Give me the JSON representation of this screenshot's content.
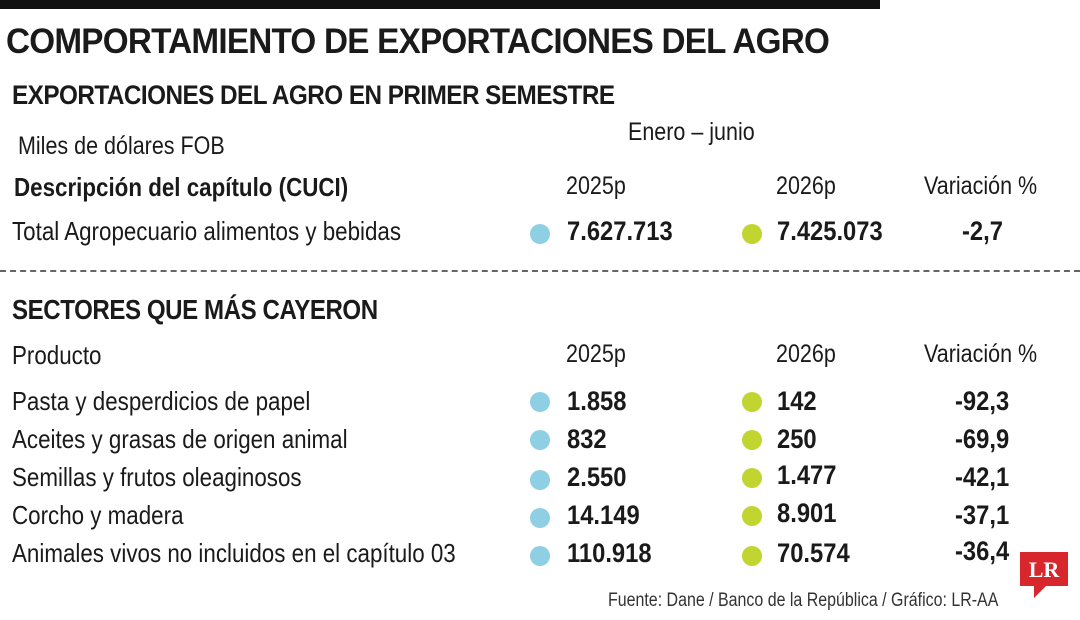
{
  "title": "COMPORTAMIENTO DE EXPORTACIONES DEL AGRO",
  "subtitle": "EXPORTACIONES DEL AGRO EN PRIMER SEMESTRE",
  "units": "Miles de dólares FOB",
  "period": "Enero – junio",
  "colors": {
    "dot_2025": "#8fcfe3",
    "dot_2026": "#c1d42f",
    "logo_red": "#d7262c"
  },
  "total_table": {
    "headers": {
      "description": "Descripción del capítulo (CUCI)",
      "y2025": "2025p",
      "y2026": "2026p",
      "variation": "Variación %"
    },
    "rows": [
      {
        "label": "Total Agropecuario alimentos y bebidas",
        "y2025": "7.627.713",
        "y2026": "7.425.073",
        "variation": "-2,7"
      }
    ]
  },
  "sectors_table": {
    "title": "SECTORES QUE MÁS CAYERON",
    "headers": {
      "product": "Producto",
      "y2025": "2025p",
      "y2026": "2026p",
      "variation": "Variación %"
    },
    "rows": [
      {
        "label": "Pasta y desperdicios de papel",
        "y2025": "1.858",
        "y2026": "142",
        "variation": "-92,3"
      },
      {
        "label": "Aceites y grasas de origen animal",
        "y2025": "832",
        "y2026": "250",
        "variation": "-69,9"
      },
      {
        "label": "Semillas y frutos oleaginosos",
        "y2025": "2.550",
        "y2026": "1.477",
        "variation": "-42,1"
      },
      {
        "label": "Corcho y madera",
        "y2025": "14.149",
        "y2026": "8.901",
        "variation": "-37,1"
      },
      {
        "label": "Animales vivos no incluidos en el capítulo 03",
        "y2025": "110.918",
        "y2026": "70.574",
        "variation": "-36,4"
      }
    ]
  },
  "source": "Fuente: Dane / Banco de la República / Gráfico: LR-AA",
  "logo": {
    "text": "LR"
  }
}
